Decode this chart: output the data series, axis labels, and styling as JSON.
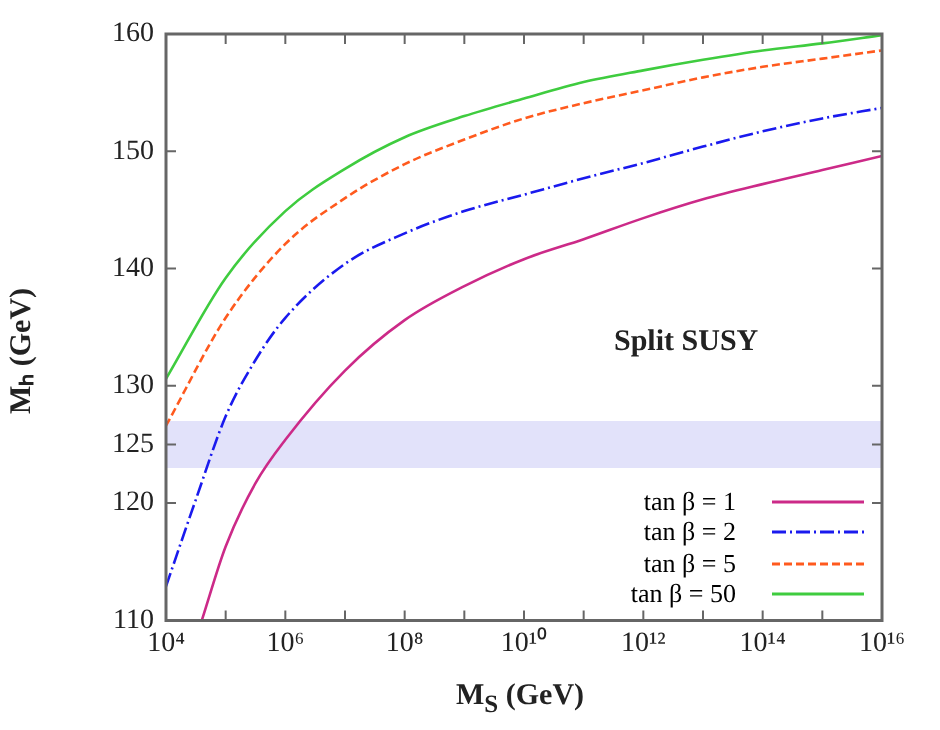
{
  "chart_data": {
    "type": "line",
    "xlabel": "M$_{S}$ (GeV)",
    "ylabel": "Mₕ (GeV)",
    "log": "x",
    "xlim": [
      10000,
      10000000000000000
    ],
    "xticks": [
      {
        "value": 10000,
        "label": "10⁴"
      },
      {
        "value": 100000,
        "label": null
      },
      {
        "value": 1000000,
        "label": "10⁶"
      },
      {
        "value": 10000000,
        "label": null
      },
      {
        "value": 100000000,
        "label": "10⁸"
      },
      {
        "value": 1000000000,
        "label": null
      },
      {
        "value": 10000000000,
        "label": "10¹⁰"
      },
      {
        "value": 100000000000,
        "label": null
      },
      {
        "value": 1000000000000,
        "label": "10¹²"
      },
      {
        "value": 10000000000000,
        "label": null
      },
      {
        "value": 100000000000000,
        "label": "10¹⁴"
      },
      {
        "value": 1000000000000000,
        "label": null
      },
      {
        "value": 10000000000000000,
        "label": "10¹⁶"
      }
    ],
    "ylim": [
      110,
      160
    ],
    "yticks": [
      110,
      120,
      125,
      130,
      140,
      150,
      160
    ],
    "bands": [
      {
        "axis": "y",
        "from": 123,
        "to": 127,
        "color": "#e2e2fa"
      }
    ],
    "annotations": [
      "Split SUSY"
    ],
    "legend": "bottom right",
    "series": [
      {
        "name": "tan β = 1",
        "color": "#cc2a88",
        "line_style": "solid",
        "x": [
          39811,
          100000,
          316228,
          1000000,
          10000000,
          100000000,
          1000000000,
          10000000000,
          100000000000,
          1000000000000,
          10000000000000,
          100000000000000,
          1000000000000000,
          10000000000000000
        ],
        "values": [
          110,
          116.3,
          121.7,
          125.4,
          131.3,
          135.6,
          138.5,
          140.8,
          142.5,
          144.3,
          145.9,
          147.2,
          148.4,
          149.6
        ]
      },
      {
        "name": "tan β = 2",
        "color": "#1a1aee",
        "line_style": "dashdot",
        "x": [
          10000,
          31623,
          100000,
          316228,
          1000000,
          10000000,
          100000000,
          1000000000,
          10000000000,
          100000000000,
          1000000000000,
          10000000000000,
          100000000000000,
          1000000000000000,
          10000000000000000
        ],
        "values": [
          112.9,
          120.3,
          127.4,
          132.2,
          135.8,
          140.4,
          143.0,
          144.9,
          146.3,
          147.7,
          149.0,
          150.4,
          151.7,
          152.8,
          153.7
        ]
      },
      {
        "name": "tan β = 5",
        "color": "#ff5a1e",
        "line_style": "dashed",
        "x": [
          10000,
          100000,
          1000000,
          10000000,
          100000000,
          1000000000,
          10000000000,
          100000000000,
          1000000000000,
          10000000000000,
          100000000000000,
          1000000000000000,
          10000000000000000
        ],
        "values": [
          126.6,
          135.8,
          142.1,
          146.0,
          148.9,
          151.0,
          152.8,
          154.1,
          155.2,
          156.3,
          157.2,
          157.9,
          158.6
        ]
      },
      {
        "name": "tan β = 50",
        "color": "#3fcc3f",
        "line_style": "solid",
        "x": [
          10000,
          100000,
          1000000,
          10000000,
          100000000,
          1000000000,
          10000000000,
          100000000000,
          1000000000000,
          10000000000000,
          100000000000000,
          1000000000000000,
          10000000000000000
        ],
        "values": [
          130.6,
          139.2,
          144.9,
          148.5,
          151.2,
          153.0,
          154.5,
          155.9,
          156.9,
          157.8,
          158.6,
          159.2,
          159.9
        ]
      }
    ]
  }
}
